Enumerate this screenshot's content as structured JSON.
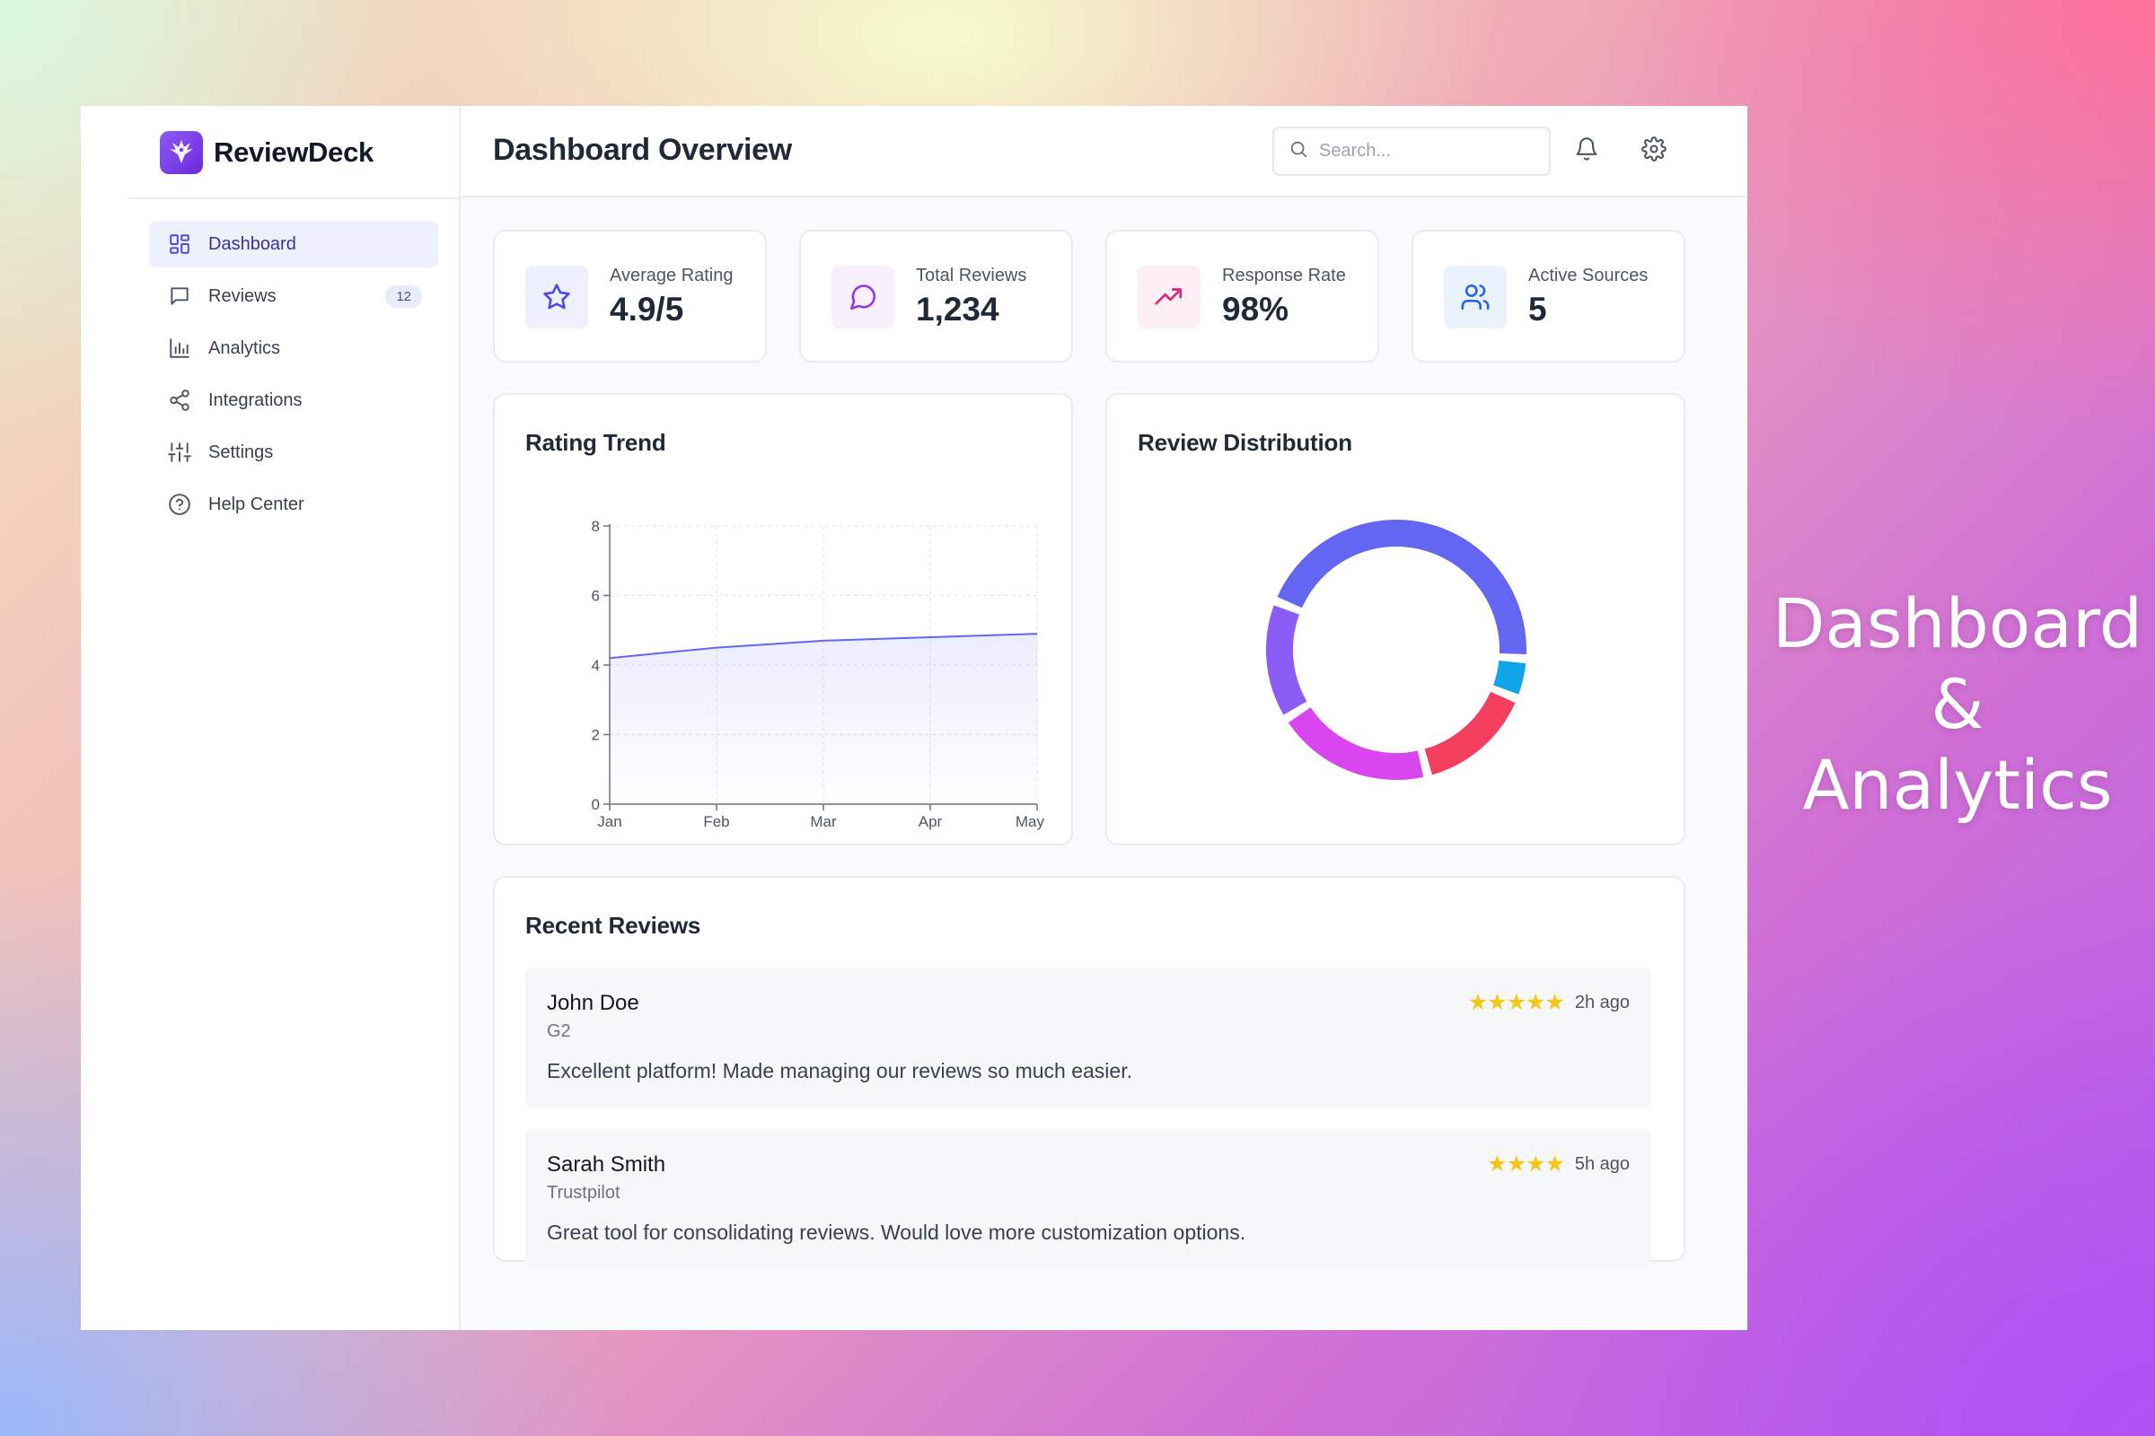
{
  "app": {
    "name": "ReviewDeck"
  },
  "sidebar": {
    "items": [
      {
        "label": "Dashboard",
        "icon": "dashboard-icon",
        "active": true
      },
      {
        "label": "Reviews",
        "icon": "message-icon",
        "badge": "12"
      },
      {
        "label": "Analytics",
        "icon": "bar-chart-icon"
      },
      {
        "label": "Integrations",
        "icon": "share-icon"
      },
      {
        "label": "Settings",
        "icon": "sliders-icon"
      },
      {
        "label": "Help Center",
        "icon": "help-circle-icon"
      }
    ]
  },
  "header": {
    "title": "Dashboard Overview",
    "search_placeholder": "Search...",
    "notification_icon": "bell-icon",
    "settings_icon": "gear-icon"
  },
  "stats": [
    {
      "label": "Average Rating",
      "value": "4.9/5",
      "icon": "star-icon",
      "color": "#4f46e5",
      "bg": "#eef0fd"
    },
    {
      "label": "Total Reviews",
      "value": "1,234",
      "icon": "message-icon",
      "color": "#9333ea",
      "bg": "#f7effd"
    },
    {
      "label": "Response Rate",
      "value": "98%",
      "icon": "trending-up-icon",
      "color": "#db2777",
      "bg": "#fdeef4"
    },
    {
      "label": "Active Sources",
      "value": "5",
      "icon": "users-icon",
      "color": "#2563eb",
      "bg": "#eaf2fd"
    }
  ],
  "rating_trend": {
    "title": "Rating Trend",
    "chart_data": {
      "type": "area",
      "categories": [
        "Jan",
        "Feb",
        "Mar",
        "Apr",
        "May"
      ],
      "values": [
        4.2,
        4.5,
        4.7,
        4.8,
        4.9
      ],
      "ylim": [
        0,
        8
      ],
      "yticks": [
        "0",
        "2",
        "4",
        "6",
        "8"
      ],
      "grid": true,
      "line_color": "#6366f1"
    }
  },
  "review_distribution": {
    "title": "Review Distribution",
    "chart_data": {
      "type": "pie",
      "values": [
        45,
        5,
        15,
        20,
        15
      ],
      "colors": [
        "#6366f1",
        "#0ea5e9",
        "#f43f5e",
        "#d946ef",
        "#8b5cf6"
      ]
    }
  },
  "recent_reviews": {
    "title": "Recent Reviews",
    "items": [
      {
        "name": "John Doe",
        "source": "G2",
        "text": "Excellent platform! Made managing our reviews so much easier.",
        "stars": "★★★★★",
        "rating": 5,
        "time": "2h ago"
      },
      {
        "name": "Sarah Smith",
        "source": "Trustpilot",
        "text": "Great tool for consolidating reviews. Would love more customization options.",
        "stars": "★★★★",
        "rating": 4,
        "time": "5h ago"
      }
    ]
  },
  "tagline": {
    "line1": "Dashboard",
    "line2": "&",
    "line3": "Analytics"
  },
  "theme": {
    "accent": "#4f46e5",
    "star_color": "#f5c518"
  }
}
